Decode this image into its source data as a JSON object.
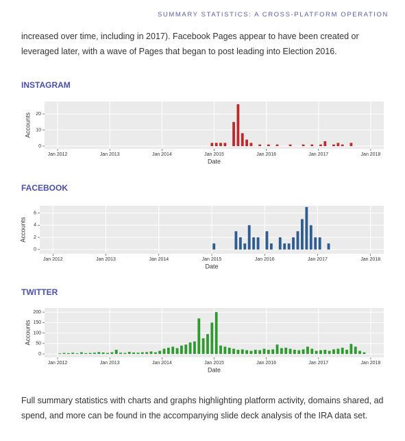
{
  "header": {
    "title": "SUMMARY STATISTICS: A CROSS-PLATFORM OPERATION"
  },
  "paragraphs": [
    "increased over time, including in 2017). Facebook Pages appear to have been created or leveraged later, with a wave of Pages that began to post leading into Election 2016.",
    "Full summary statistics with charts and graphs highlighting platform activity, domains shared, ad spend, and more can be found in the accompanying slide deck analysis of the IRA data set."
  ],
  "chart_data": [
    {
      "type": "bar",
      "title": "INSTAGRAM",
      "x_label": "Date",
      "y_label": "Accounts",
      "color": "#c0282d",
      "grid": true,
      "x": [
        "2014-12",
        "2015-01",
        "2015-02",
        "2015-03",
        "2015-05",
        "2015-06",
        "2015-07",
        "2015-08",
        "2015-09",
        "2015-11",
        "2016-01",
        "2016-03",
        "2016-06",
        "2016-09",
        "2016-11",
        "2017-01",
        "2017-02",
        "2017-04",
        "2017-05",
        "2017-06",
        "2017-08"
      ],
      "values": [
        2,
        2,
        2,
        2,
        15,
        26,
        8,
        4,
        2,
        1,
        1,
        1,
        1,
        1,
        1,
        1,
        3,
        1,
        2,
        1,
        2
      ],
      "xlim": [
        "2011-10",
        "2018-04"
      ],
      "xticks": [
        {
          "value": "2012-01",
          "label": "Jan 2012"
        },
        {
          "value": "2013-01",
          "label": "Jan 2013"
        },
        {
          "value": "2014-01",
          "label": "Jan 2014"
        },
        {
          "value": "2015-01",
          "label": "Jan 2015"
        },
        {
          "value": "2016-01",
          "label": "Jan 2016"
        },
        {
          "value": "2017-01",
          "label": "Jan 2017"
        },
        {
          "value": "2018-01",
          "label": "Jan 2018"
        }
      ],
      "ylim": [
        -1.7,
        27.7
      ],
      "yticks": [
        0,
        10,
        20
      ]
    },
    {
      "type": "bar",
      "title": "FACEBOOK",
      "x_label": "Date",
      "y_label": "Accounts",
      "color": "#2f5d8f",
      "grid": true,
      "x": [
        "2015-01",
        "2015-06",
        "2015-07",
        "2015-08",
        "2015-09",
        "2015-10",
        "2015-11",
        "2016-01",
        "2016-02",
        "2016-04",
        "2016-05",
        "2016-06",
        "2016-07",
        "2016-08",
        "2016-09",
        "2016-10",
        "2016-11",
        "2016-12",
        "2017-01",
        "2017-03"
      ],
      "values": [
        1,
        3,
        2,
        1,
        4,
        2,
        2,
        3,
        1,
        2,
        1,
        1,
        2,
        3,
        5,
        7,
        4,
        2,
        2,
        1
      ],
      "xlim": [
        "2011-10",
        "2018-04"
      ],
      "xticks": [
        {
          "value": "2012-01",
          "label": "Jan 2012"
        },
        {
          "value": "2013-01",
          "label": "Jan 2013"
        },
        {
          "value": "2014-01",
          "label": "Jan 2014"
        },
        {
          "value": "2015-01",
          "label": "Jan 2015"
        },
        {
          "value": "2016-01",
          "label": "Jan 2016"
        },
        {
          "value": "2017-01",
          "label": "Jan 2017"
        },
        {
          "value": "2018-01",
          "label": "Jan 2018"
        }
      ],
      "ylim": [
        -0.7,
        7.2
      ],
      "yticks": [
        0,
        2,
        4,
        6
      ]
    },
    {
      "type": "bar",
      "title": "TWITTER",
      "x_label": "Date",
      "y_label": "Accounts",
      "color": "#2e9b2e",
      "grid": true,
      "x": [
        "2012-01",
        "2012-02",
        "2012-03",
        "2012-04",
        "2012-05",
        "2012-06",
        "2012-07",
        "2012-08",
        "2012-09",
        "2012-10",
        "2012-11",
        "2012-12",
        "2013-01",
        "2013-02",
        "2013-03",
        "2013-04",
        "2013-05",
        "2013-06",
        "2013-07",
        "2013-08",
        "2013-09",
        "2013-10",
        "2013-11",
        "2013-12",
        "2014-01",
        "2014-02",
        "2014-03",
        "2014-04",
        "2014-05",
        "2014-06",
        "2014-07",
        "2014-08",
        "2014-09",
        "2014-10",
        "2014-11",
        "2014-12",
        "2015-01",
        "2015-02",
        "2015-03",
        "2015-04",
        "2015-05",
        "2015-06",
        "2015-07",
        "2015-08",
        "2015-09",
        "2015-10",
        "2015-11",
        "2015-12",
        "2016-01",
        "2016-02",
        "2016-03",
        "2016-04",
        "2016-05",
        "2016-06",
        "2016-07",
        "2016-08",
        "2016-09",
        "2016-10",
        "2016-11",
        "2016-12",
        "2017-01",
        "2017-02",
        "2017-03",
        "2017-04",
        "2017-05",
        "2017-06",
        "2017-07",
        "2017-08",
        "2017-09",
        "2017-10",
        "2017-11"
      ],
      "values": [
        3,
        5,
        4,
        6,
        3,
        8,
        4,
        5,
        6,
        9,
        7,
        5,
        8,
        20,
        6,
        5,
        10,
        7,
        6,
        8,
        9,
        12,
        8,
        15,
        25,
        30,
        35,
        28,
        40,
        45,
        55,
        60,
        170,
        75,
        95,
        150,
        200,
        40,
        35,
        30,
        25,
        20,
        22,
        18,
        15,
        20,
        18,
        25,
        20,
        22,
        45,
        28,
        30,
        25,
        20,
        18,
        22,
        35,
        25,
        15,
        18,
        20,
        15,
        22,
        25,
        30,
        20,
        48,
        35,
        15,
        8
      ],
      "xlim": [
        "2011-10",
        "2018-04"
      ],
      "xticks": [
        {
          "value": "2012-01",
          "label": "Jan 2012"
        },
        {
          "value": "2013-01",
          "label": "Jan 2013"
        },
        {
          "value": "2014-01",
          "label": "Jan 2014"
        },
        {
          "value": "2015-01",
          "label": "Jan 2015"
        },
        {
          "value": "2016-01",
          "label": "Jan 2016"
        },
        {
          "value": "2017-01",
          "label": "Jan 2017"
        },
        {
          "value": "2018-01",
          "label": "Jan 2018"
        }
      ],
      "ylim": [
        -16,
        220
      ],
      "yticks": [
        0,
        50,
        100,
        150,
        200
      ]
    }
  ]
}
